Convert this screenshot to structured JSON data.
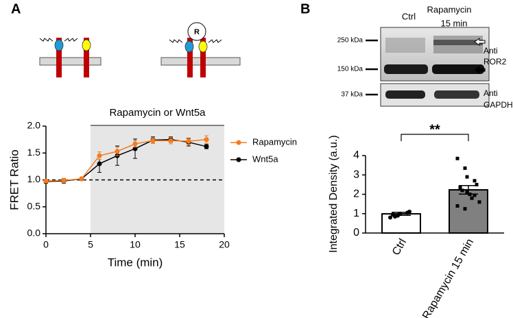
{
  "panel_labels": [
    "A",
    "B"
  ],
  "diagram": {
    "complex_label": "R"
  },
  "blot": {
    "lanes": [
      [
        "Ctrl"
      ],
      [
        "Rapamycin",
        "15 min"
      ]
    ],
    "markers": [
      "250 kDa",
      "150 kDa",
      "37 kDa"
    ],
    "antibodies": [
      [
        "Anti",
        "ROR2"
      ],
      [
        "Anti",
        "GAPDH"
      ]
    ]
  },
  "chart_data": [
    {
      "type": "line",
      "xlabel": "Time (min)",
      "ylabel": "FRET Ratio",
      "shaded_label": "Rapamycin or Wnt5a",
      "shaded_region": [
        5,
        20
      ],
      "reference_line": 1.0,
      "x": [
        0,
        2,
        4,
        6,
        8,
        10,
        12,
        14,
        16,
        18
      ],
      "series": [
        {
          "name": "Rapamycin",
          "color": "#f47b20",
          "values": [
            0.98,
            0.99,
            1.02,
            1.45,
            1.53,
            1.67,
            1.73,
            1.73,
            1.72,
            1.75
          ],
          "errors": [
            0.03,
            0.04,
            0.03,
            0.07,
            0.08,
            0.06,
            0.05,
            0.06,
            0.06,
            0.07
          ]
        },
        {
          "name": "Wnt5a",
          "color": "#000000",
          "values": [
            0.97,
            0.98,
            1.02,
            1.3,
            1.45,
            1.58,
            1.74,
            1.75,
            1.7,
            1.62
          ],
          "errors": [
            0.03,
            0.04,
            0.03,
            0.16,
            0.18,
            0.18,
            0.06,
            0.05,
            0.07,
            0.04
          ]
        }
      ],
      "xlim": [
        0,
        20
      ],
      "xticks": [
        0,
        5,
        10,
        15,
        20
      ],
      "ylim": [
        0,
        2
      ],
      "yticks": [
        {
          "value": 0,
          "label": "0.0"
        },
        {
          "value": 0.5,
          "label": "0.5"
        },
        {
          "value": 1,
          "label": "1.0"
        },
        {
          "value": 1.5,
          "label": "1.5"
        },
        {
          "value": 2,
          "label": "2.0"
        }
      ],
      "legend": "upper right"
    },
    {
      "type": "bar",
      "ylabel": "Integrated Density (a.u.)",
      "categories": [
        "Ctrl",
        "Rapamycin 15 min"
      ],
      "values": [
        0.99,
        2.23
      ],
      "errors": [
        0.08,
        0.22
      ],
      "colors": [
        "#ffffff",
        "#808080"
      ],
      "points": [
        [
          0.8,
          0.9,
          1.0,
          1.05,
          1.1,
          0.95,
          0.85
        ],
        [
          3.85,
          3.35,
          2.9,
          2.7,
          2.5,
          2.35,
          2.2,
          2.0,
          1.8,
          1.6,
          1.4,
          1.25,
          2.1,
          1.95
        ]
      ],
      "ylim": [
        0,
        4
      ],
      "yticks": [
        0,
        1,
        2,
        3,
        4
      ],
      "significance": "**"
    }
  ]
}
